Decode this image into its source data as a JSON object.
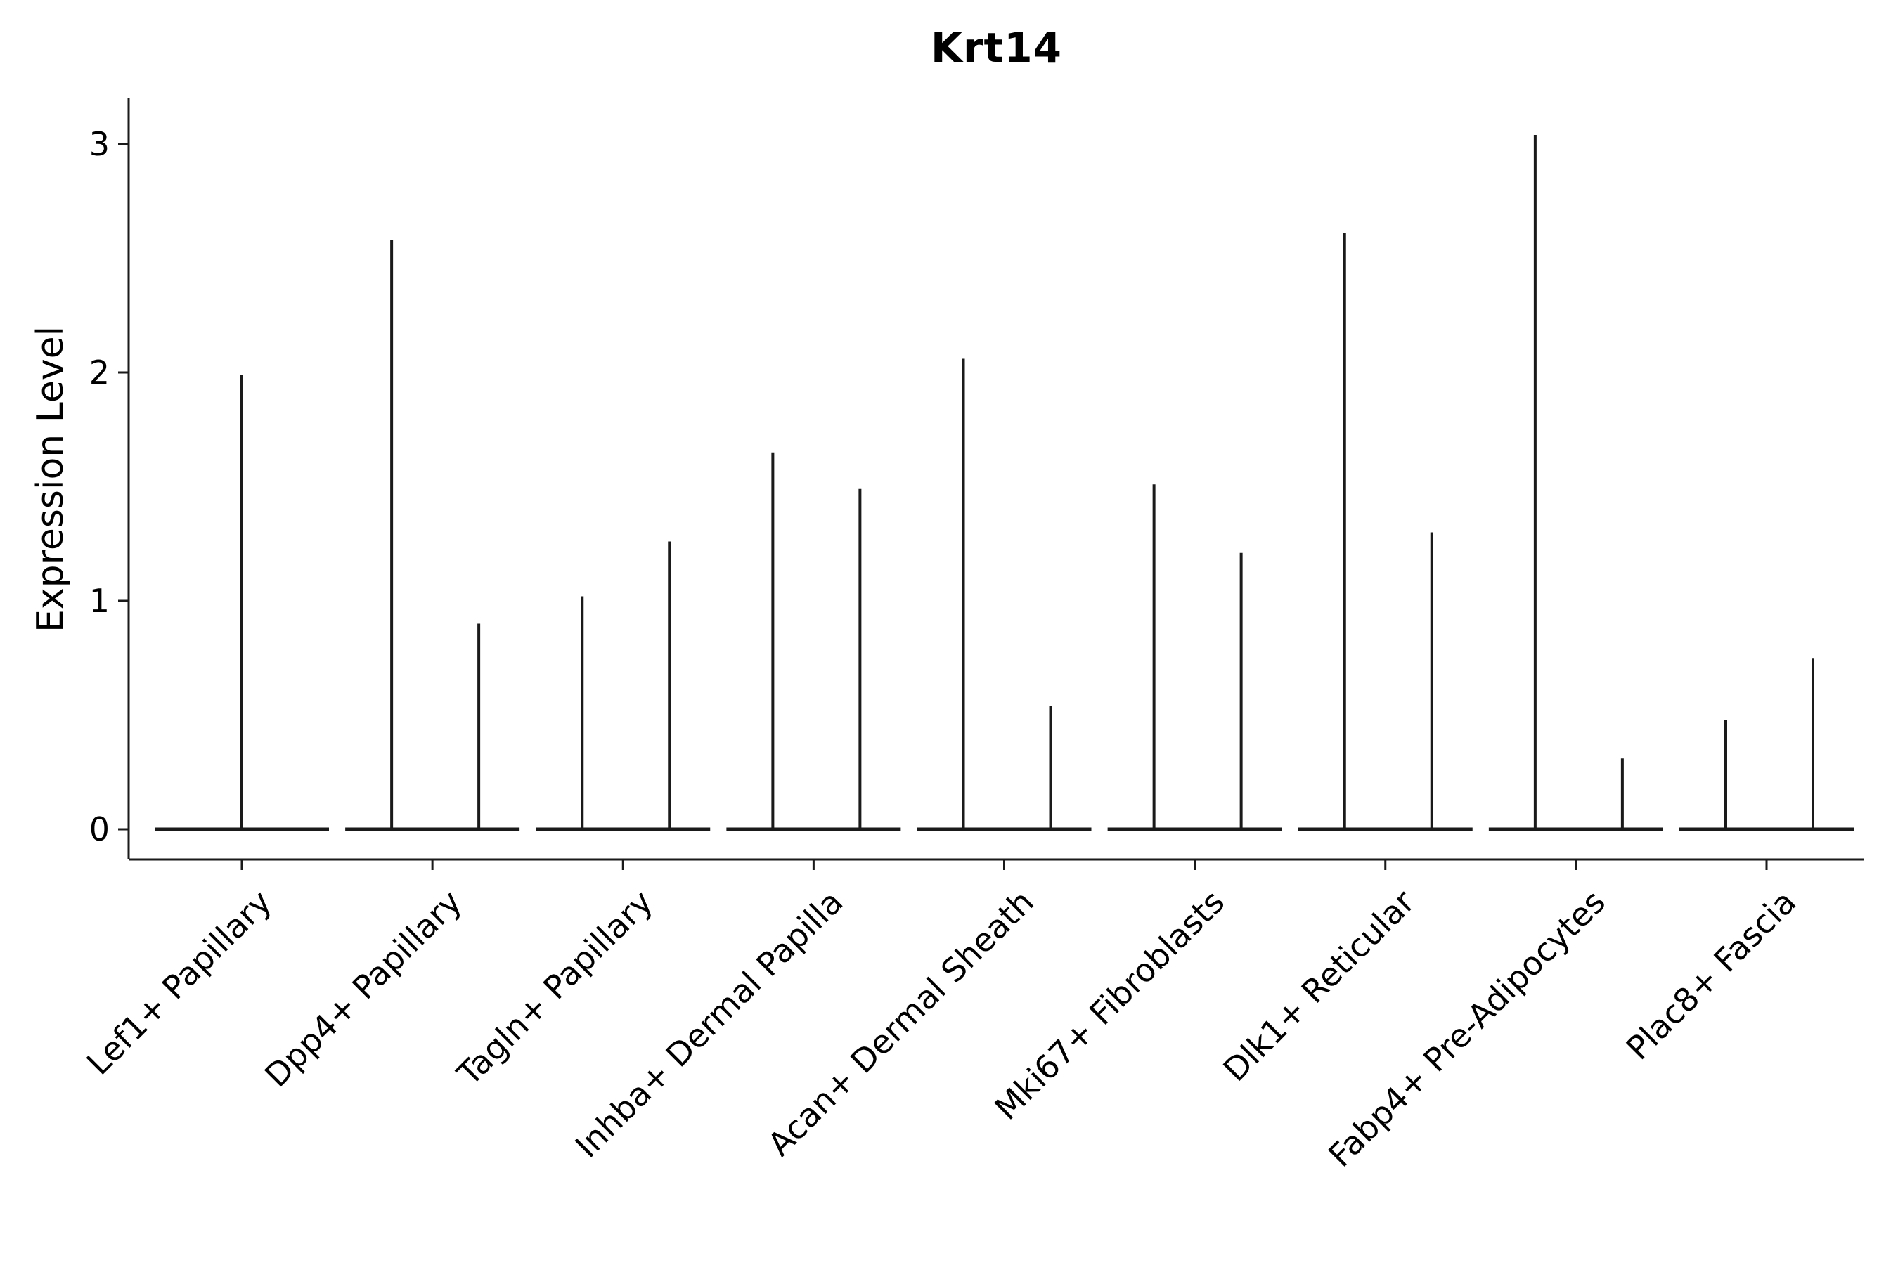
{
  "chart_data": {
    "type": "violin",
    "title": "Krt14",
    "ylabel": "Expression Level",
    "xlabel": "",
    "yticks": [
      0,
      1,
      2,
      3
    ],
    "ylim": [
      -0.08,
      3.15
    ],
    "grid": false,
    "legend": "none",
    "categories": [
      "Lef1+ Papillary",
      "Dpp4+ Papillary",
      "Tagln+ Papillary",
      "Inhba+ Dermal Papilla",
      "Acan+ Dermal Sheath",
      "Mki67+ Fibroblasts",
      "Dlk1+ Reticular",
      "Fabp4+ Pre-Adipocytes",
      "Plac8+ Fascia"
    ],
    "violins": [
      {
        "category": "Lef1+ Papillary",
        "position": "center",
        "baseline": 0,
        "max_expression": 1.99
      },
      {
        "category": "Dpp4+ Papillary",
        "position": "left",
        "baseline": 0,
        "max_expression": 2.58
      },
      {
        "category": "Dpp4+ Papillary",
        "position": "right",
        "baseline": 0,
        "max_expression": 0.9
      },
      {
        "category": "Tagln+ Papillary",
        "position": "left",
        "baseline": 0,
        "max_expression": 1.02
      },
      {
        "category": "Tagln+ Papillary",
        "position": "right",
        "baseline": 0,
        "max_expression": 1.26
      },
      {
        "category": "Inhba+ Dermal Papilla",
        "position": "left",
        "baseline": 0,
        "max_expression": 1.65
      },
      {
        "category": "Inhba+ Dermal Papilla",
        "position": "right",
        "baseline": 0,
        "max_expression": 1.49
      },
      {
        "category": "Acan+ Dermal Sheath",
        "position": "left",
        "baseline": 0,
        "max_expression": 2.06
      },
      {
        "category": "Acan+ Dermal Sheath",
        "position": "right",
        "baseline": 0,
        "max_expression": 0.54
      },
      {
        "category": "Mki67+ Fibroblasts",
        "position": "left",
        "baseline": 0,
        "max_expression": 1.51
      },
      {
        "category": "Mki67+ Fibroblasts",
        "position": "right",
        "baseline": 0,
        "max_expression": 1.21
      },
      {
        "category": "Dlk1+ Reticular",
        "position": "left",
        "baseline": 0,
        "max_expression": 2.61
      },
      {
        "category": "Dlk1+ Reticular",
        "position": "right",
        "baseline": 0,
        "max_expression": 1.3
      },
      {
        "category": "Fabp4+ Pre-Adipocytes",
        "position": "left",
        "baseline": 0,
        "max_expression": 3.04
      },
      {
        "category": "Fabp4+ Pre-Adipocytes",
        "position": "right",
        "baseline": 0,
        "max_expression": 0.31
      },
      {
        "category": "Plac8+ Fascia",
        "position": "left",
        "baseline": 0,
        "max_expression": 0.48
      },
      {
        "category": "Plac8+ Fascia",
        "position": "right",
        "baseline": 0,
        "max_expression": 0.75
      }
    ],
    "colors": {
      "stroke": "#1a1a1a",
      "text": "#000000",
      "background": "#ffffff"
    }
  }
}
